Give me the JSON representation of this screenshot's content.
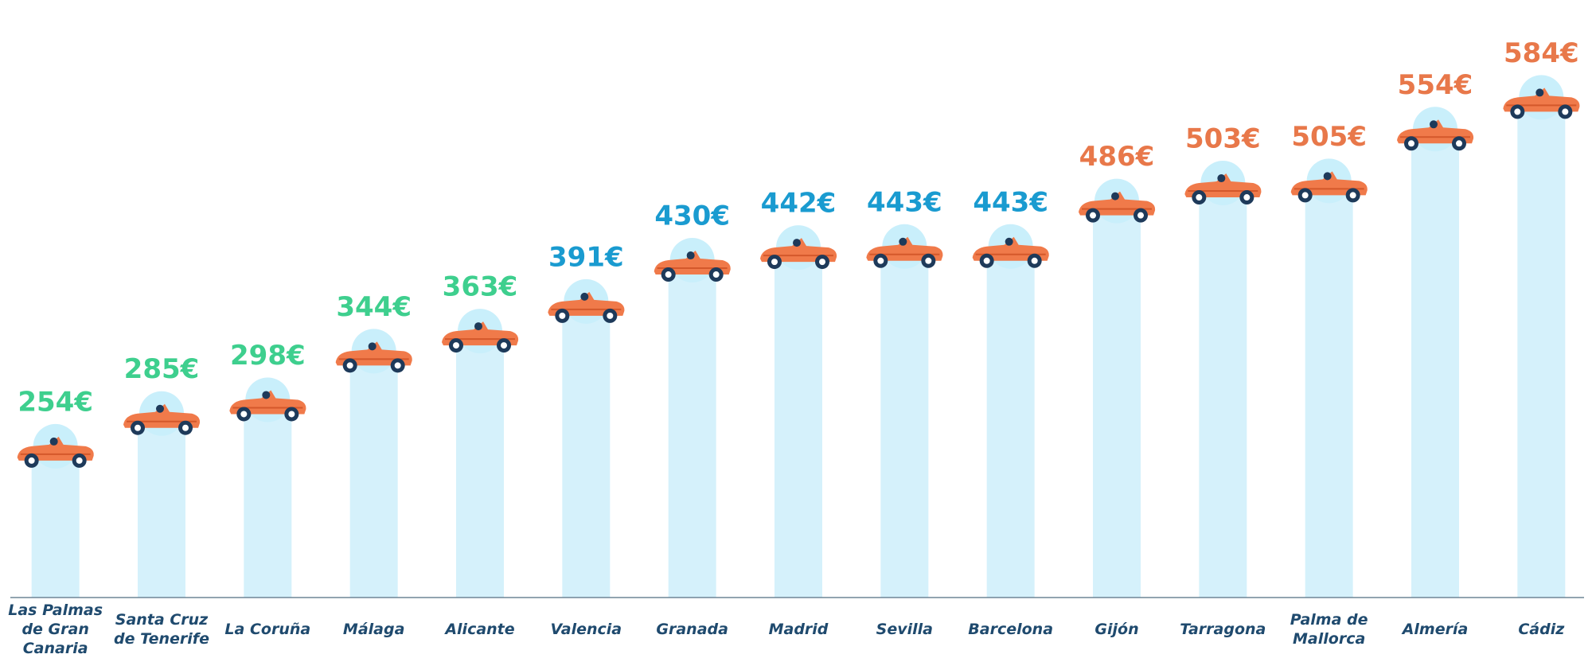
{
  "chart_data": {
    "type": "bar",
    "categories": [
      "Las Palmas de Gran Canaria",
      "Santa Cruz de Tenerife",
      "La Coruña",
      "Málaga",
      "Alicante",
      "Valencia",
      "Granada",
      "Madrid",
      "Sevilla",
      "Barcelona",
      "Gijón",
      "Tarragona",
      "Palma de Mallorca",
      "Almería",
      "Cádiz"
    ],
    "values": [
      254,
      285,
      298,
      344,
      363,
      391,
      430,
      442,
      443,
      443,
      486,
      503,
      505,
      554,
      584
    ],
    "value_labels": [
      "254€",
      "285€",
      "298€",
      "344€",
      "363€",
      "391€",
      "430€",
      "442€",
      "443€",
      "443€",
      "486€",
      "503€",
      "505€",
      "554€",
      "584€"
    ],
    "colors": [
      "#3ecf8e",
      "#3ecf8e",
      "#3ecf8e",
      "#3ecf8e",
      "#3ecf8e",
      "#1a9bd0",
      "#1a9bd0",
      "#1a9bd0",
      "#1a9bd0",
      "#1a9bd0",
      "#e8784a",
      "#e8784a",
      "#e8784a",
      "#e8784a",
      "#e8784a"
    ],
    "bar_color": "#d5f1fb",
    "ylim": [
      120,
      640
    ]
  }
}
